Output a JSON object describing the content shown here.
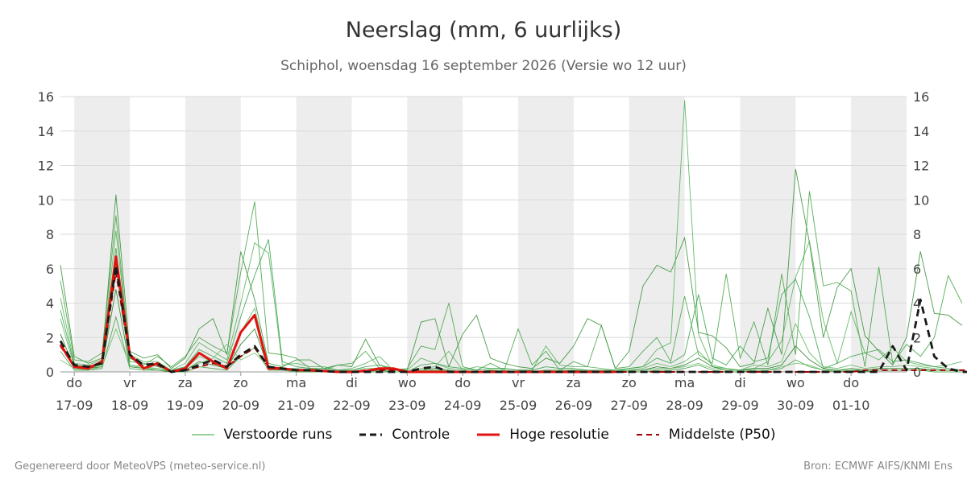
{
  "chart_data": {
    "type": "line",
    "title": "Neerslag (mm, 6 uurlijks)",
    "subtitle": "Schiphol, woensdag 16 september 2026 (Versie wo 12 uur)",
    "ylim": [
      0,
      16
    ],
    "yticks": [
      0,
      2,
      4,
      6,
      8,
      10,
      12,
      14,
      16
    ],
    "xlim": [
      0,
      15.25
    ],
    "x_ticks": [
      {
        "day": "do",
        "date": "17-09",
        "x": 0.25
      },
      {
        "day": "vr",
        "date": "18-09",
        "x": 1.25
      },
      {
        "day": "za",
        "date": "19-09",
        "x": 2.25
      },
      {
        "day": "zo",
        "date": "20-09",
        "x": 3.25
      },
      {
        "day": "ma",
        "date": "21-09",
        "x": 4.25
      },
      {
        "day": "di",
        "date": "22-09",
        "x": 5.25
      },
      {
        "day": "wo",
        "date": "23-09",
        "x": 6.25
      },
      {
        "day": "do",
        "date": "24-09",
        "x": 7.25
      },
      {
        "day": "vr",
        "date": "25-09",
        "x": 8.25
      },
      {
        "day": "za",
        "date": "26-09",
        "x": 9.25
      },
      {
        "day": "zo",
        "date": "27-09",
        "x": 10.25
      },
      {
        "day": "ma",
        "date": "28-09",
        "x": 11.25
      },
      {
        "day": "di",
        "date": "29-09",
        "x": 12.25
      },
      {
        "day": "wo",
        "date": "30-09",
        "x": 13.25
      },
      {
        "day": "do",
        "date": "01-10",
        "x": 14.25
      }
    ],
    "weekend_bands": [
      [
        0.25,
        1.25
      ],
      [
        2.25,
        3.25
      ],
      [
        4.25,
        5.25
      ],
      [
        6.25,
        7.25
      ],
      [
        8.25,
        9.25
      ],
      [
        10.25,
        11.25
      ],
      [
        12.25,
        13.25
      ],
      [
        14.25,
        15.25
      ]
    ],
    "time_step_days": 0.25,
    "series": [
      {
        "name": "Controle",
        "style": "dashed",
        "color": "#1a1a1a",
        "values": [
          1.8,
          0.4,
          0.3,
          0.5,
          6.2,
          1.0,
          0.4,
          0.5,
          0.0,
          0.1,
          0.4,
          0.7,
          0.3,
          1.0,
          1.5,
          0.3,
          0.2,
          0.1,
          0.1,
          0.05,
          0.0,
          0.0,
          0.0,
          0.0,
          0.0,
          0.0,
          0.2,
          0.3,
          0.0,
          0.0,
          0.0,
          0.0,
          0.0,
          0.0,
          0.0,
          0.0,
          0.0,
          0.0,
          0.0,
          0.0,
          0.0,
          0.0,
          0.0,
          0.0,
          0.0,
          0.0,
          0.0,
          0.0,
          0.0,
          0.0,
          0.0,
          0.0,
          0.0,
          0.0,
          0.0,
          0.0,
          0.0,
          0.0,
          0.0,
          0.0,
          1.5,
          0.1,
          4.2,
          0.9,
          0.2,
          0.0,
          0.0,
          0.0,
          0.0,
          0.0,
          0.0,
          0.0
        ]
      },
      {
        "name": "Hoge resolutie",
        "style": "solid",
        "color": "#e0130e",
        "values": [
          1.6,
          0.3,
          0.2,
          0.6,
          6.7,
          1.0,
          0.2,
          0.5,
          0.0,
          0.2,
          1.1,
          0.6,
          0.2,
          2.3,
          3.3,
          0.2,
          0.2,
          0.1,
          0.1,
          0.05,
          0.0,
          0.0,
          0.05,
          0.2,
          0.2,
          0.0,
          0.0,
          0.0,
          0.0,
          0.0,
          0.0,
          0.0,
          0.0,
          0.0,
          0.0,
          0.0,
          0.0,
          0.0,
          0.0,
          0.0,
          0.0
        ]
      },
      {
        "name": "Middelste (P50)",
        "style": "dashed",
        "color": "#a00000",
        "values": [
          1.5,
          0.3,
          0.3,
          0.5,
          5.8,
          0.9,
          0.3,
          0.4,
          0.0,
          0.1,
          0.3,
          0.5,
          0.3,
          0.9,
          1.4,
          0.3,
          0.2,
          0.1,
          0.1,
          0.05,
          0.0,
          0.0,
          0.1,
          0.1,
          0.1,
          0.0,
          0.0,
          0.0,
          0.0,
          0.0,
          0.0,
          0.0,
          0.0,
          0.0,
          0.0,
          0.0,
          0.0,
          0.0,
          0.0,
          0.0,
          0.0,
          0.0,
          0.0,
          0.0,
          0.0,
          0.0,
          0.0,
          0.0,
          0.0,
          0.0,
          0.0,
          0.0,
          0.0,
          0.0,
          0.0,
          0.0,
          0.0,
          0.0,
          0.1,
          0.1,
          0.1,
          0.1,
          0.1,
          0.1,
          0.1,
          0.1,
          0.1,
          0.1,
          0.1,
          0.1,
          0.1
        ]
      }
    ],
    "ensemble": {
      "name": "Verstoorde runs",
      "color": "#3a9a3a",
      "members": [
        [
          6.2,
          0.9,
          0.5,
          0.8,
          10.3,
          1.2,
          0.8,
          1.0,
          0.2,
          0.8,
          2.5,
          3.1,
          1.0,
          7.0,
          4.2,
          0.5,
          0.3,
          0.7,
          0.7,
          0.2,
          0.4,
          0.3,
          1.9,
          0.4,
          0.2,
          0.1,
          2.9,
          3.1,
          0.3,
          2.2,
          3.3,
          0.8,
          0.5,
          0.3,
          0.2,
          0.8,
          0.5,
          1.5,
          3.1,
          2.7,
          0.2,
          1.2,
          5.0,
          6.2,
          5.8,
          7.8,
          2.3,
          2.1,
          1.4,
          0.3,
          0.5,
          3.7,
          1.0,
          11.8,
          7.5,
          2.0,
          4.9,
          6.0,
          2.1,
          1.2,
          0.4,
          2.0,
          7.0,
          3.4,
          3.3,
          2.7
        ],
        [
          5.3,
          0.7,
          0.6,
          1.1,
          9.1,
          0.8,
          0.4,
          0.9,
          0.3,
          0.9,
          2.0,
          1.5,
          1.1,
          5.8,
          9.9,
          1.1,
          1.0,
          0.8,
          0.2,
          0.1,
          0.4,
          0.5,
          1.2,
          0.2,
          0.1,
          0.2,
          1.5,
          1.3,
          4.0,
          0.3,
          0.1,
          0.5,
          0.1,
          2.5,
          0.4,
          1.2,
          0.1,
          0.6,
          0.3,
          2.7,
          0.2,
          0.3,
          1.2,
          2.0,
          0.6,
          4.4,
          1.0,
          0.5,
          5.7,
          0.8,
          2.9,
          0.4,
          5.7,
          1.0,
          10.5,
          5.0,
          5.2,
          4.7,
          0.3,
          6.1,
          0.5,
          1.6,
          0.9,
          2.0,
          5.6,
          4.0
        ],
        [
          4.3,
          0.5,
          0.4,
          0.7,
          8.2,
          1.0,
          0.6,
          0.6,
          0.1,
          0.5,
          1.7,
          1.2,
          0.7,
          4.0,
          7.5,
          6.9,
          0.4,
          0.5,
          0.3,
          0.3,
          0.1,
          0.2,
          0.5,
          0.9,
          0.1,
          0.1,
          0.8,
          0.5,
          0.2,
          0.1,
          0.3,
          0.2,
          0.2,
          0.1,
          0.1,
          1.5,
          0.4,
          0.3,
          0.3,
          0.2,
          0.1,
          0.2,
          0.3,
          1.3,
          1.7,
          15.8,
          2.2,
          0.3,
          0.2,
          0.1,
          0.2,
          0.6,
          1.8,
          5.5,
          7.6,
          3.0,
          0.5,
          3.5,
          1.1,
          0.7,
          1.4,
          0.6,
          0.4,
          0.3,
          0.4,
          0.6
        ],
        [
          3.6,
          0.4,
          0.3,
          0.5,
          7.2,
          0.6,
          0.5,
          0.3,
          0.1,
          0.3,
          1.3,
          0.9,
          0.5,
          3.2,
          5.6,
          7.7,
          0.6,
          0.3,
          0.2,
          0.2,
          0.1,
          0.1,
          0.3,
          0.4,
          0.1,
          0.0,
          0.4,
          0.5,
          0.3,
          0.2,
          0.1,
          0.2,
          0.2,
          0.1,
          0.1,
          0.3,
          0.2,
          0.2,
          0.1,
          0.1,
          0.1,
          0.2,
          0.3,
          0.8,
          0.5,
          1.0,
          4.5,
          0.8,
          0.4,
          1.5,
          0.6,
          0.8,
          4.5,
          5.4,
          3.2,
          0.2,
          0.5,
          0.9,
          1.1,
          1.3,
          0.6,
          0.7,
          0.5,
          0.3,
          0.2,
          0.1
        ],
        [
          3.1,
          0.3,
          0.2,
          0.4,
          6.0,
          0.4,
          0.3,
          0.2,
          0.0,
          0.2,
          0.9,
          0.6,
          0.3,
          2.3,
          3.7,
          0.3,
          0.2,
          0.2,
          0.1,
          0.1,
          0.0,
          0.1,
          0.2,
          0.2,
          0.0,
          0.0,
          0.2,
          0.3,
          1.2,
          0.1,
          0.0,
          0.1,
          0.1,
          0.0,
          0.0,
          0.1,
          0.1,
          0.1,
          0.1,
          0.0,
          0.1,
          0.1,
          0.2,
          0.5,
          0.3,
          0.6,
          1.2,
          0.4,
          0.2,
          0.1,
          0.4,
          0.3,
          0.6,
          2.8,
          1.1,
          0.3,
          0.2,
          0.4,
          0.2,
          0.3,
          0.3,
          0.4,
          0.3,
          0.2,
          0.1,
          0.1
        ],
        [
          2.2,
          0.2,
          0.2,
          0.3,
          4.8,
          0.3,
          0.2,
          0.1,
          0.0,
          0.1,
          0.6,
          0.4,
          0.2,
          1.6,
          2.5,
          0.2,
          0.1,
          0.1,
          0.1,
          0.0,
          0.0,
          0.0,
          0.1,
          0.1,
          0.0,
          0.0,
          0.1,
          0.2,
          0.1,
          0.0,
          0.0,
          0.1,
          0.0,
          0.0,
          0.0,
          0.1,
          0.0,
          0.1,
          0.0,
          0.0,
          0.0,
          0.1,
          0.1,
          0.3,
          0.2,
          0.4,
          0.8,
          0.3,
          0.1,
          0.1,
          0.2,
          0.2,
          0.4,
          1.5,
          0.7,
          0.2,
          0.1,
          0.2,
          0.1,
          0.2,
          0.2,
          0.2,
          0.2,
          0.1,
          0.1,
          0.1
        ],
        [
          1.2,
          0.1,
          0.1,
          0.2,
          3.2,
          0.2,
          0.1,
          0.1,
          0.0,
          0.0,
          0.3,
          0.2,
          0.1,
          0.9,
          1.4,
          0.1,
          0.1,
          0.0,
          0.0,
          0.0,
          0.0,
          0.0,
          0.0,
          0.0,
          0.0,
          0.0,
          0.0,
          0.1,
          0.0,
          0.0,
          0.0,
          0.0,
          0.0,
          0.0,
          0.0,
          0.0,
          0.0,
          0.0,
          0.0,
          0.0,
          0.0,
          0.0,
          0.0,
          0.1,
          0.1,
          0.2,
          0.4,
          0.1,
          0.0,
          0.0,
          0.1,
          0.1,
          0.2,
          0.7,
          0.3,
          0.1,
          0.0,
          0.1,
          0.0,
          0.1,
          0.1,
          0.1,
          0.1,
          0.0,
          0.0,
          0.0
        ],
        [
          0.7,
          0.2,
          0.1,
          0.3,
          2.5,
          0.4,
          0.2,
          0.2,
          0.1,
          0.1,
          0.5,
          0.8,
          1.6,
          0.7,
          1.1,
          0.3,
          0.2,
          0.1,
          0.1,
          0.1,
          0.0,
          0.0,
          0.0,
          0.1,
          0.0,
          0.0,
          0.1,
          0.1,
          0.1,
          0.0,
          0.0,
          0.0,
          0.0,
          0.0,
          0.0,
          0.1,
          0.0,
          0.0,
          0.0,
          0.0,
          0.0,
          0.1,
          0.1,
          0.2,
          0.2,
          0.3,
          0.5,
          0.2,
          0.1,
          0.1,
          0.1,
          0.1,
          0.3,
          0.5,
          0.4,
          0.1,
          0.1,
          0.1,
          0.1,
          0.1,
          0.1,
          0.1,
          0.1,
          0.1,
          0.1,
          0.1
        ]
      ]
    }
  },
  "legend": {
    "ensemble_label": "Verstoorde runs",
    "control_label": "Controle",
    "hires_label": "Hoge resolutie",
    "median_label": "Middelste (P50)"
  },
  "footer": {
    "left": "Gegenereerd door MeteoVPS (meteo-service.nl)",
    "right": "Bron: ECMWF AIFS/KNMI Ens"
  }
}
